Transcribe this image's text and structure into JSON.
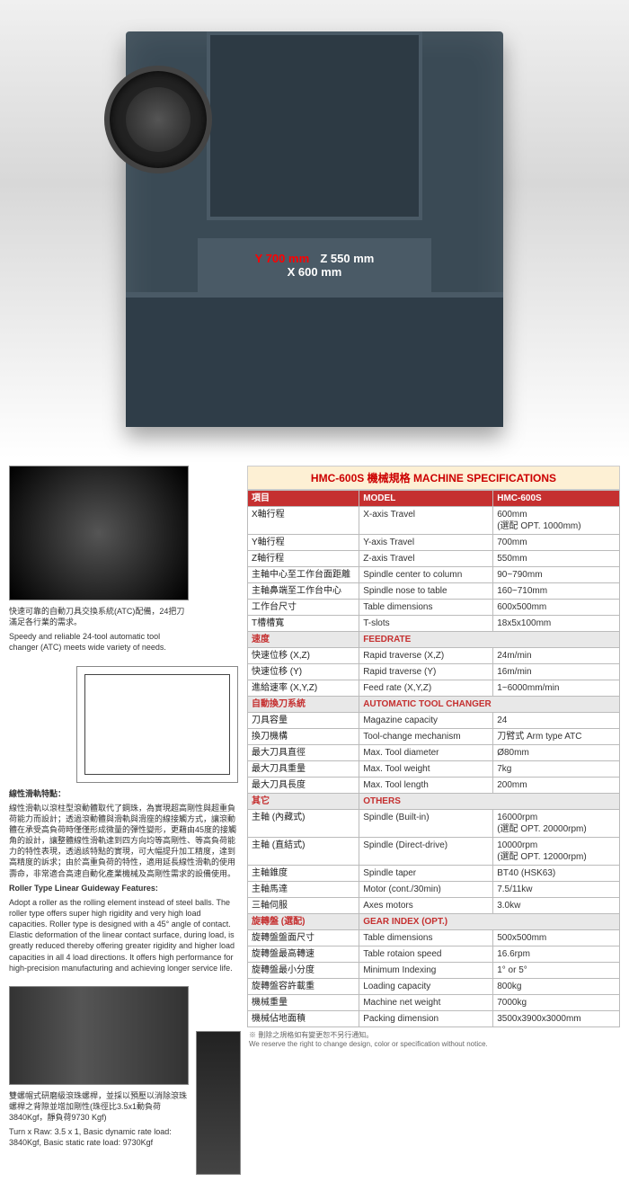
{
  "hero": {
    "y_label": "Y 700 mm",
    "z_label": "Z 550 mm",
    "x_label": "X 600 mm"
  },
  "captions": {
    "atc_zh": "快速可靠的自動刀具交換系統(ATC)配備，24把刀滿足各行業的需求。",
    "atc_en": "Speedy and reliable 24-tool automatic tool changer (ATC) meets wide variety of needs.",
    "guideway_title_zh": "線性滑軌特點：",
    "guideway_body_zh": "線性滑軌以滾柱型滾動體取代了鋼珠，為實現超高剛性與超重負荷能力而設計；透過滾動體與滑軌與滑座的線接觸方式，讓滾動體在承受高負荷時僅僅形成微量的彈性變形，更藉由45度的接觸角的設計，讓整體線性滑軌達到四方向均等高剛性、等高負荷能力的特性表現，透過該特點的實現，可大幅提升加工精度，達到高精度的訴求；由於高重負荷的特性，適用延長線性滑軌的使用壽命，非常適合高速自動化產業機械及高剛性需求的設備使用。",
    "guideway_title_en": "Roller Type Linear Guideway Features:",
    "guideway_body_en": "Adopt a roller as the rolling element instead of steel balls. The roller type offers super high rigidity and very high load capacities. Roller type is designed with a 45° angle of contact. Elastic deformation of the linear contact surface, during load, is greatly reduced thereby offering greater rigidity and higher load capacities in all 4 load directions. It offers high performance for high-precision manufacturing and achieving longer service life.",
    "screw_zh": "雙螺帽式研磨級滾珠螺桿，並採以預壓以消除滾珠螺桿之背隙並增加剛性(珠徑比3.5x1動負荷3840Kgf，靜負荷9730 Kgf)",
    "screw_en": "Turn x Raw: 3.5 x 1, Basic dynamic rate load: 3840Kgf, Basic static rate load: 9730Kgf"
  },
  "spec": {
    "title": "HMC-600S 機械規格  MACHINE SPECIFICATIONS",
    "header_zh": "項目",
    "header_model": "MODEL",
    "header_val": "HMC-600S",
    "rows": [
      {
        "zh": "X軸行程",
        "en": "X-axis Travel",
        "val": "600mm\n(選配 OPT. 1000mm)"
      },
      {
        "zh": "Y軸行程",
        "en": "Y-axis Travel",
        "val": "700mm"
      },
      {
        "zh": "Z軸行程",
        "en": "Z-axis Travel",
        "val": "550mm"
      },
      {
        "zh": "主軸中心至工作台面距離",
        "en": "Spindle center to column",
        "val": "90~790mm"
      },
      {
        "zh": "主軸鼻端至工作台中心",
        "en": "Spindle nose to table",
        "val": "160~710mm"
      },
      {
        "zh": "工作台尺寸",
        "en": "Table dimensions",
        "val": "600x500mm"
      },
      {
        "zh": "T槽槽寬",
        "en": "T-slots",
        "val": "18x5x100mm"
      }
    ],
    "section_feedrate": {
      "zh": "速度",
      "en": "FEEDRATE"
    },
    "rows_feedrate": [
      {
        "zh": "快速位移 (X,Z)",
        "en": "Rapid traverse (X,Z)",
        "val": "24m/min"
      },
      {
        "zh": "快速位移 (Y)",
        "en": "Rapid traverse (Y)",
        "val": "16m/min"
      },
      {
        "zh": "進給速率 (X,Y,Z)",
        "en": "Feed rate (X,Y,Z)",
        "val": "1~6000mm/min"
      }
    ],
    "section_atc": {
      "zh": "自動換刀系統",
      "en": "AUTOMATIC TOOL CHANGER"
    },
    "rows_atc": [
      {
        "zh": "刀具容量",
        "en": "Magazine capacity",
        "val": "24"
      },
      {
        "zh": "換刀機構",
        "en": "Tool-change mechanism",
        "val": "刀臂式 Arm type ATC"
      },
      {
        "zh": "最大刀具直徑",
        "en": "Max. Tool diameter",
        "val": "Ø80mm"
      },
      {
        "zh": "最大刀具重量",
        "en": "Max. Tool weight",
        "val": "7kg"
      },
      {
        "zh": "最大刀具長度",
        "en": "Max. Tool length",
        "val": "200mm"
      }
    ],
    "section_others": {
      "zh": "其它",
      "en": "OTHERS"
    },
    "rows_others": [
      {
        "zh": "主軸 (內藏式)",
        "en": "Spindle (Built-in)",
        "val": "16000rpm\n(選配 OPT. 20000rpm)"
      },
      {
        "zh": "主軸 (直結式)",
        "en": "Spindle (Direct-drive)",
        "val": "10000rpm\n(選配 OPT. 12000rpm)"
      },
      {
        "zh": "主軸錐度",
        "en": "Spindle taper",
        "val": "BT40 (HSK63)"
      },
      {
        "zh": "主軸馬達",
        "en": "Motor (cont./30min)",
        "val": "7.5/11kw"
      },
      {
        "zh": "三軸伺服",
        "en": "Axes motors",
        "val": "3.0kw"
      }
    ],
    "section_gear": {
      "zh": "旋轉盤 (選配)",
      "en": "GEAR INDEX (OPT.)"
    },
    "rows_gear": [
      {
        "zh": "旋轉盤盤面尺寸",
        "en": "Table dimensions",
        "val": "500x500mm"
      },
      {
        "zh": "旋轉盤最高轉速",
        "en": "Table rotaion speed",
        "val": "16.6rpm"
      },
      {
        "zh": "旋轉盤最小分度",
        "en": "Minimum Indexing",
        "val": "1° or  5°"
      },
      {
        "zh": "旋轉盤容許載重",
        "en": "Loading capacity",
        "val": "800kg"
      },
      {
        "zh": "機械重量",
        "en": "Machine net weight",
        "val": "7000kg"
      },
      {
        "zh": "機械佔地面積",
        "en": "Packing dimension",
        "val": "3500x3900x3000mm"
      }
    ],
    "footnote_zh": "※ 刪除之規格如有變更恕不另行通知。",
    "footnote_en": "We reserve the right to change design, color or specification without notice."
  }
}
